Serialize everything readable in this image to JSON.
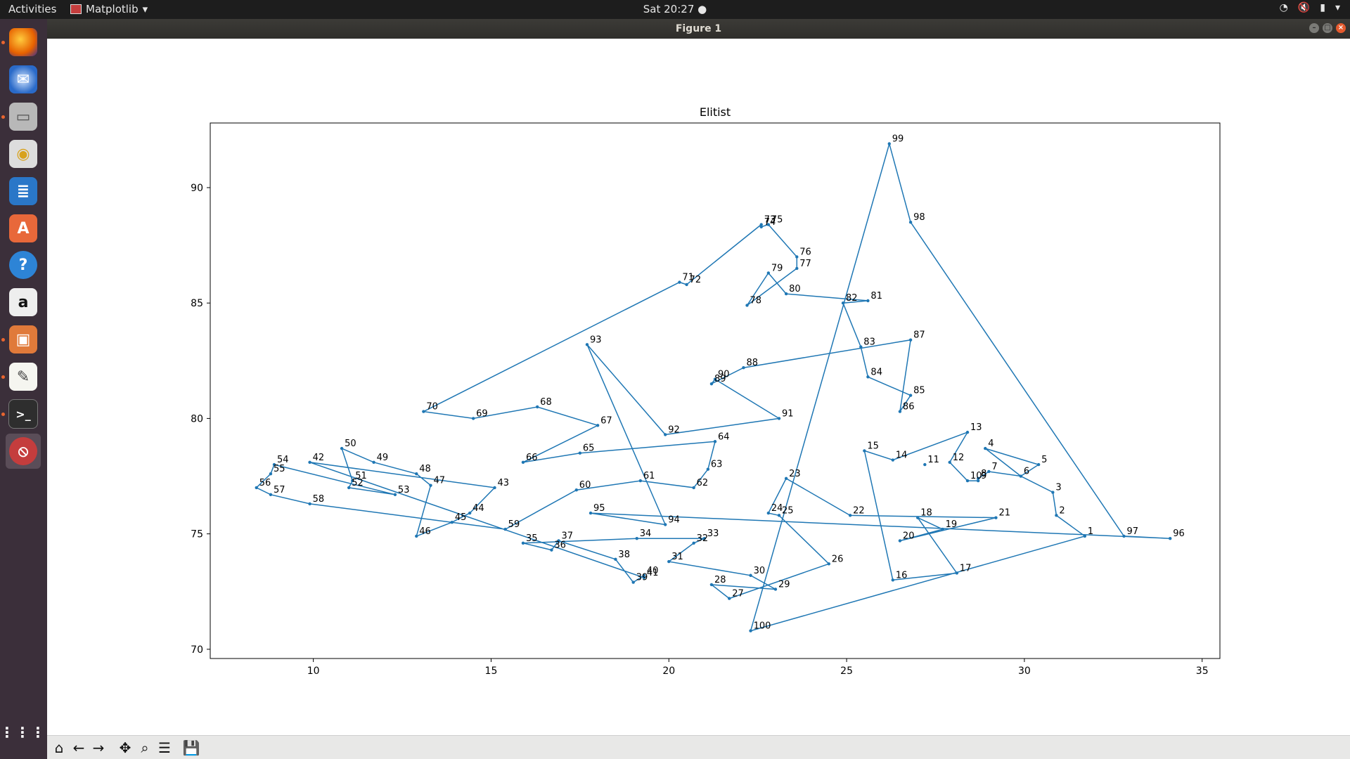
{
  "topbar": {
    "activities": "Activities",
    "app_menu": "Matplotlib",
    "clock": "Sat 20:27",
    "tray_icons": [
      "wifi-icon",
      "mute-icon",
      "battery-icon",
      "chevron-down-icon"
    ]
  },
  "window": {
    "title": "Figure 1"
  },
  "dock": {
    "items": [
      "firefox-icon",
      "thunderbird-icon",
      "files-icon",
      "rhythmbox-icon",
      "writer-icon",
      "software-icon",
      "help-icon",
      "amazon-icon",
      "files-icon",
      "text-editor-icon",
      "terminal-icon",
      "app-icon",
      "apps-grid-icon"
    ]
  },
  "toolbar": {
    "icons": [
      "home-icon",
      "back-icon",
      "forward-icon",
      "pan-icon",
      "zoom-icon",
      "configure-icon",
      "save-icon"
    ]
  },
  "chart_data": {
    "type": "line",
    "title": "Elitist",
    "xlabel": "",
    "ylabel": "",
    "xlim": [
      7.1,
      35.5
    ],
    "ylim": [
      69.6,
      92.8
    ],
    "xticks": [
      "10",
      "15",
      "20",
      "25",
      "30",
      "35"
    ],
    "yticks": [
      "70",
      "75",
      "80",
      "85",
      "90"
    ],
    "grid": false,
    "color": "#1f77b4",
    "points": [
      {
        "label": "1",
        "x": 31.7,
        "y": 74.9
      },
      {
        "label": "2",
        "x": 30.9,
        "y": 75.8
      },
      {
        "label": "3",
        "x": 30.8,
        "y": 76.8
      },
      {
        "label": "4",
        "x": 28.9,
        "y": 78.7
      },
      {
        "label": "5",
        "x": 30.4,
        "y": 78.0
      },
      {
        "label": "6",
        "x": 29.9,
        "y": 77.5
      },
      {
        "label": "7",
        "x": 29.0,
        "y": 77.7
      },
      {
        "label": "8",
        "x": 28.7,
        "y": 77.4
      },
      {
        "label": "9",
        "x": 28.7,
        "y": 77.3
      },
      {
        "label": "10",
        "x": 28.4,
        "y": 77.3
      },
      {
        "label": "11",
        "x": 27.2,
        "y": 78.0
      },
      {
        "label": "12",
        "x": 27.9,
        "y": 78.1
      },
      {
        "label": "13",
        "x": 28.4,
        "y": 79.4
      },
      {
        "label": "14",
        "x": 26.3,
        "y": 78.2
      },
      {
        "label": "15",
        "x": 25.5,
        "y": 78.6
      },
      {
        "label": "16",
        "x": 26.3,
        "y": 73.0
      },
      {
        "label": "17",
        "x": 28.1,
        "y": 73.3
      },
      {
        "label": "18",
        "x": 27.0,
        "y": 75.7
      },
      {
        "label": "19",
        "x": 27.7,
        "y": 75.2
      },
      {
        "label": "20",
        "x": 26.5,
        "y": 74.7
      },
      {
        "label": "21",
        "x": 29.2,
        "y": 75.7
      },
      {
        "label": "22",
        "x": 25.1,
        "y": 75.8
      },
      {
        "label": "23",
        "x": 23.3,
        "y": 77.4
      },
      {
        "label": "24",
        "x": 22.8,
        "y": 75.9
      },
      {
        "label": "25",
        "x": 23.1,
        "y": 75.8
      },
      {
        "label": "26",
        "x": 24.5,
        "y": 73.7
      },
      {
        "label": "27",
        "x": 21.7,
        "y": 72.2
      },
      {
        "label": "28",
        "x": 21.2,
        "y": 72.8
      },
      {
        "label": "29",
        "x": 23.0,
        "y": 72.6
      },
      {
        "label": "30",
        "x": 22.3,
        "y": 73.2
      },
      {
        "label": "31",
        "x": 20.0,
        "y": 73.8
      },
      {
        "label": "32",
        "x": 20.7,
        "y": 74.6
      },
      {
        "label": "33",
        "x": 21.0,
        "y": 74.8
      },
      {
        "label": "34",
        "x": 19.1,
        "y": 74.8
      },
      {
        "label": "35",
        "x": 15.9,
        "y": 74.6
      },
      {
        "label": "36",
        "x": 16.7,
        "y": 74.3
      },
      {
        "label": "37",
        "x": 16.9,
        "y": 74.7
      },
      {
        "label": "38",
        "x": 18.5,
        "y": 73.9
      },
      {
        "label": "39",
        "x": 19.0,
        "y": 72.9
      },
      {
        "label": "40",
        "x": 19.3,
        "y": 73.2
      },
      {
        "label": "41",
        "x": 19.3,
        "y": 73.1
      },
      {
        "label": "42",
        "x": 9.9,
        "y": 78.1
      },
      {
        "label": "43",
        "x": 15.1,
        "y": 77.0
      },
      {
        "label": "44",
        "x": 14.4,
        "y": 75.9
      },
      {
        "label": "45",
        "x": 13.9,
        "y": 75.5
      },
      {
        "label": "46",
        "x": 12.9,
        "y": 74.9
      },
      {
        "label": "47",
        "x": 13.3,
        "y": 77.1
      },
      {
        "label": "48",
        "x": 12.9,
        "y": 77.6
      },
      {
        "label": "49",
        "x": 11.7,
        "y": 78.1
      },
      {
        "label": "50",
        "x": 10.8,
        "y": 78.7
      },
      {
        "label": "51",
        "x": 11.1,
        "y": 77.3
      },
      {
        "label": "52",
        "x": 11.0,
        "y": 77.0
      },
      {
        "label": "53",
        "x": 12.3,
        "y": 76.7
      },
      {
        "label": "54",
        "x": 8.9,
        "y": 78.0
      },
      {
        "label": "55",
        "x": 8.8,
        "y": 77.6
      },
      {
        "label": "56",
        "x": 8.4,
        "y": 77.0
      },
      {
        "label": "57",
        "x": 8.8,
        "y": 76.7
      },
      {
        "label": "58",
        "x": 9.9,
        "y": 76.3
      },
      {
        "label": "59",
        "x": 15.4,
        "y": 75.2
      },
      {
        "label": "60",
        "x": 17.4,
        "y": 76.9
      },
      {
        "label": "61",
        "x": 19.2,
        "y": 77.3
      },
      {
        "label": "62",
        "x": 20.7,
        "y": 77.0
      },
      {
        "label": "63",
        "x": 21.1,
        "y": 77.8
      },
      {
        "label": "64",
        "x": 21.3,
        "y": 79.0
      },
      {
        "label": "65",
        "x": 17.5,
        "y": 78.5
      },
      {
        "label": "66",
        "x": 15.9,
        "y": 78.1
      },
      {
        "label": "67",
        "x": 18.0,
        "y": 79.7
      },
      {
        "label": "68",
        "x": 16.3,
        "y": 80.5
      },
      {
        "label": "69",
        "x": 14.5,
        "y": 80.0
      },
      {
        "label": "70",
        "x": 13.1,
        "y": 80.3
      },
      {
        "label": "71",
        "x": 20.3,
        "y": 85.9
      },
      {
        "label": "72",
        "x": 20.5,
        "y": 85.8
      },
      {
        "label": "73",
        "x": 22.6,
        "y": 88.4
      },
      {
        "label": "74",
        "x": 22.6,
        "y": 88.3
      },
      {
        "label": "75",
        "x": 22.8,
        "y": 88.4
      },
      {
        "label": "76",
        "x": 23.6,
        "y": 87.0
      },
      {
        "label": "77",
        "x": 23.6,
        "y": 86.5
      },
      {
        "label": "78",
        "x": 22.2,
        "y": 84.9
      },
      {
        "label": "79",
        "x": 22.8,
        "y": 86.3
      },
      {
        "label": "80",
        "x": 23.3,
        "y": 85.4
      },
      {
        "label": "81",
        "x": 25.6,
        "y": 85.1
      },
      {
        "label": "82",
        "x": 24.9,
        "y": 85.0
      },
      {
        "label": "83",
        "x": 25.4,
        "y": 83.1
      },
      {
        "label": "84",
        "x": 25.6,
        "y": 81.8
      },
      {
        "label": "85",
        "x": 26.8,
        "y": 81.0
      },
      {
        "label": "86",
        "x": 26.5,
        "y": 80.3
      },
      {
        "label": "87",
        "x": 26.8,
        "y": 83.4
      },
      {
        "label": "88",
        "x": 22.1,
        "y": 82.2
      },
      {
        "label": "89",
        "x": 21.2,
        "y": 81.5
      },
      {
        "label": "90",
        "x": 21.3,
        "y": 81.7
      },
      {
        "label": "91",
        "x": 23.1,
        "y": 80.0
      },
      {
        "label": "92",
        "x": 19.9,
        "y": 79.3
      },
      {
        "label": "93",
        "x": 17.7,
        "y": 83.2
      },
      {
        "label": "94",
        "x": 19.9,
        "y": 75.4
      },
      {
        "label": "95",
        "x": 17.8,
        "y": 75.9
      },
      {
        "label": "96",
        "x": 34.1,
        "y": 74.8
      },
      {
        "label": "97",
        "x": 32.8,
        "y": 74.9
      },
      {
        "label": "98",
        "x": 26.8,
        "y": 88.5
      },
      {
        "label": "99",
        "x": 26.2,
        "y": 91.9
      },
      {
        "label": "100",
        "x": 22.3,
        "y": 70.8
      }
    ],
    "path": [
      1,
      2,
      3,
      6,
      5,
      4,
      6,
      7,
      8,
      9,
      10,
      12,
      13,
      14,
      15,
      16,
      17,
      18,
      19,
      20,
      21,
      22,
      23,
      24,
      25,
      26,
      27,
      28,
      29,
      30,
      31,
      32,
      33,
      34,
      35,
      36,
      37,
      38,
      39,
      40,
      41,
      42,
      43,
      44,
      45,
      46,
      47,
      48,
      49,
      50,
      51,
      52,
      53,
      54,
      55,
      56,
      57,
      58,
      59,
      60,
      61,
      62,
      63,
      64,
      65,
      66,
      67,
      68,
      69,
      70,
      71,
      72,
      73,
      74,
      75,
      76,
      77,
      78,
      79,
      80,
      81,
      82,
      83,
      84,
      85,
      86,
      87,
      88,
      89,
      90,
      91,
      92,
      93,
      94,
      95,
      96,
      97,
      98,
      99,
      100,
      1
    ]
  }
}
